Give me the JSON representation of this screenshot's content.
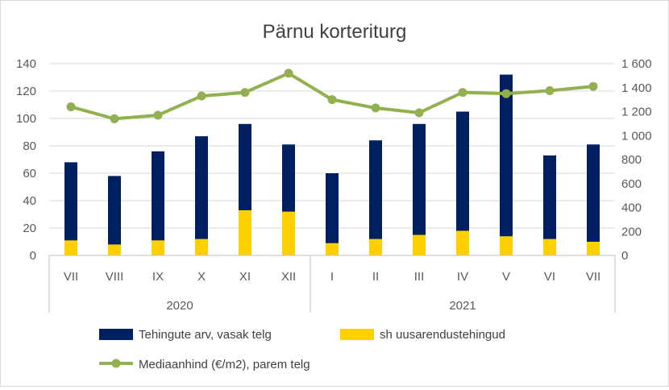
{
  "chart_data": {
    "type": "bar",
    "title": "Pärnu korteriturg",
    "categories": [
      "VII",
      "VIII",
      "IX",
      "X",
      "XI",
      "XII",
      "I",
      "II",
      "III",
      "IV",
      "V",
      "VI",
      "VII"
    ],
    "groups": [
      {
        "label": "2020",
        "count": 6
      },
      {
        "label": "2021",
        "count": 7
      }
    ],
    "series": [
      {
        "name": "Tehingute arv, vasak telg",
        "type": "bar",
        "axis": "left",
        "color": "#002060",
        "values": [
          68,
          58,
          76,
          87,
          96,
          81,
          60,
          84,
          96,
          105,
          132,
          73,
          81
        ]
      },
      {
        "name": "sh uusarendustehingud",
        "type": "bar",
        "axis": "left",
        "color": "#FFD000",
        "values": [
          11,
          8,
          11,
          12,
          33,
          32,
          9,
          12,
          15,
          18,
          14,
          12,
          10
        ]
      },
      {
        "name": "Mediaanhind (€/m2), parem telg",
        "type": "line",
        "axis": "right",
        "color": "#92B050",
        "values": [
          1240,
          1140,
          1170,
          1330,
          1360,
          1520,
          1300,
          1230,
          1190,
          1360,
          1350,
          1375,
          1410
        ]
      }
    ],
    "y_left": {
      "min": 0,
      "max": 140,
      "step": 20,
      "ticks": [
        "0",
        "20",
        "40",
        "60",
        "80",
        "100",
        "120",
        "140"
      ]
    },
    "y_right": {
      "min": 0,
      "max": 1600,
      "step": 200,
      "ticks": [
        "0",
        "200",
        "400",
        "600",
        "800",
        "1 000",
        "1 200",
        "1 400",
        "1 600"
      ]
    },
    "grid": true,
    "legend_position": "bottom"
  }
}
